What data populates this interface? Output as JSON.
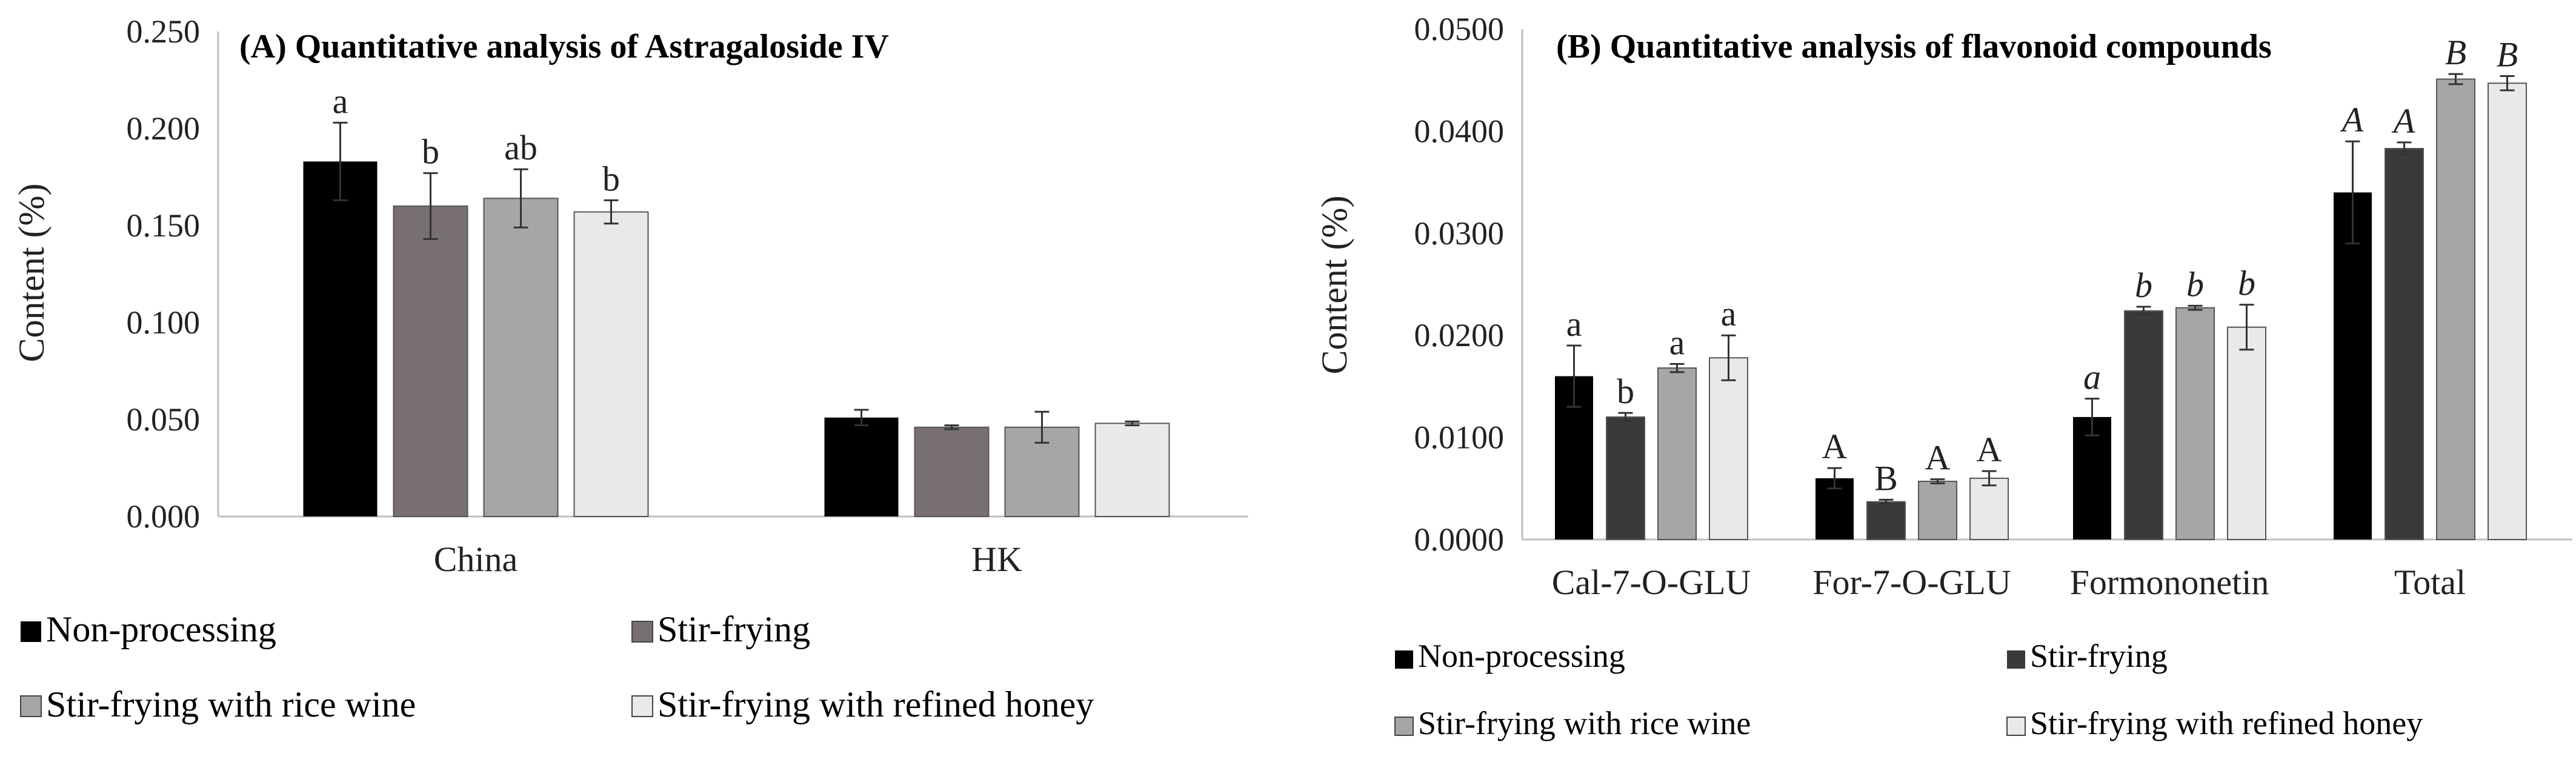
{
  "colors": {
    "non_processing": "#000000",
    "stir_frying_a": "#787070",
    "stir_frying_b": "#3a3a3a",
    "rice_wine": "#a6a6a6",
    "refined_honey": "#ebe8e8",
    "axis": "#bfbfbf",
    "error_bar": "#333333"
  },
  "chart_data": [
    {
      "type": "bar",
      "title": "(A) Quantitative analysis of Astragaloside IV",
      "xlabel": "",
      "ylabel": "Content (%)",
      "ylim": [
        0,
        0.25
      ],
      "yticks": [
        "0.000",
        "0.050",
        "0.100",
        "0.150",
        "0.200",
        "0.250"
      ],
      "categories": [
        "China",
        "HK"
      ],
      "series": [
        {
          "name": "Non-processing",
          "values": [
            0.183,
            0.051
          ],
          "errors": [
            0.02,
            0.004
          ],
          "labels": [
            "a",
            ""
          ]
        },
        {
          "name": "Stir-frying",
          "values": [
            0.16,
            0.046
          ],
          "errors": [
            0.017,
            0.001
          ],
          "labels": [
            "b",
            ""
          ]
        },
        {
          "name": "Stir-frying with rice wine",
          "values": [
            0.164,
            0.046
          ],
          "errors": [
            0.015,
            0.008
          ],
          "labels": [
            "ab",
            ""
          ]
        },
        {
          "name": "Stir-frying with refined honey",
          "values": [
            0.157,
            0.048
          ],
          "errors": [
            0.006,
            0.001
          ],
          "labels": [
            "b",
            ""
          ]
        }
      ],
      "legend": [
        "Non-processing",
        "Stir-frying",
        "Stir-frying with rice wine",
        "Stir-frying with refined honey"
      ]
    },
    {
      "type": "bar",
      "title": "(B) Quantitative analysis of flavonoid compounds",
      "xlabel": "",
      "ylabel": "Content (%)",
      "ylim": [
        0,
        0.05
      ],
      "yticks": [
        "0.0000",
        "0.0100",
        "0.0200",
        "0.0300",
        "0.0400",
        "0.0500"
      ],
      "categories": [
        "Cal-7-O-GLU",
        "For-7-O-GLU",
        "Formononetin",
        "Total"
      ],
      "label_italic": [
        false,
        false,
        true,
        true
      ],
      "series": [
        {
          "name": "Non-processing",
          "values": [
            0.016,
            0.006,
            0.012,
            0.034
          ],
          "errors": [
            0.003,
            0.001,
            0.0018,
            0.005
          ],
          "labels": [
            "a",
            "A",
            "a",
            "A"
          ]
        },
        {
          "name": "Stir-frying",
          "values": [
            0.012,
            0.0037,
            0.0224,
            0.0383
          ],
          "errors": [
            0.0004,
            0.0002,
            0.0004,
            0.0006
          ],
          "labels": [
            "b",
            "B",
            "b",
            "A"
          ]
        },
        {
          "name": "Stir-frying with rice wine",
          "values": [
            0.0168,
            0.0057,
            0.0227,
            0.0451
          ],
          "errors": [
            0.0004,
            0.0002,
            0.0002,
            0.0005
          ],
          "labels": [
            "a",
            "A",
            "b",
            "B"
          ]
        },
        {
          "name": "Stir-frying with refined honey",
          "values": [
            0.0178,
            0.006,
            0.0208,
            0.0447
          ],
          "errors": [
            0.0022,
            0.0007,
            0.0022,
            0.0007
          ],
          "labels": [
            "a",
            "A",
            "b",
            "B"
          ]
        }
      ],
      "legend": [
        "Non-processing",
        "Stir-frying",
        "Stir-frying with rice wine",
        "Stir-frying with refined honey"
      ]
    }
  ]
}
